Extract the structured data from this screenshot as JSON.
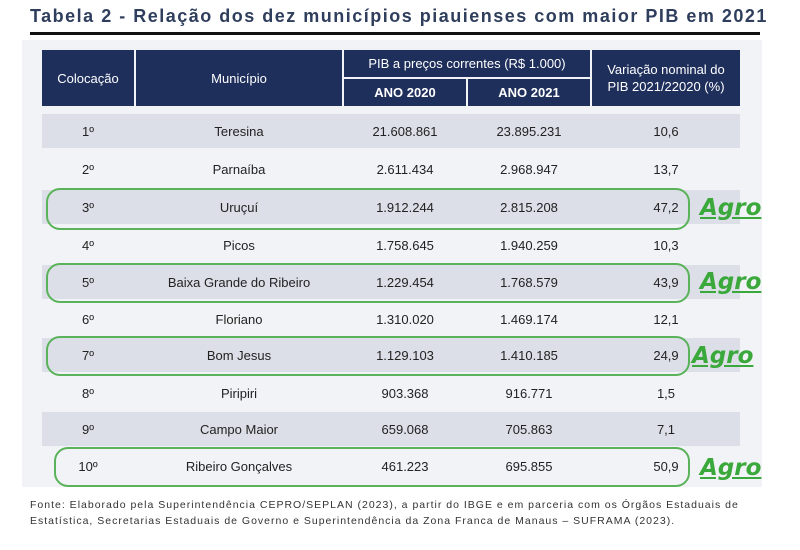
{
  "title": "Tabela 2 - Relação dos dez municípios piauienses com maior PIB em 2021",
  "header": {
    "colocacao": "Colocação",
    "municipio": "Município",
    "pib": "PIB a preços correntes (R$ 1.000)",
    "ano2020": "ANO 2020",
    "ano2021": "ANO  2021",
    "variacao_line1": "Variação nominal do",
    "variacao_line2": "PIB 2021/22020 (%)"
  },
  "rows": [
    {
      "pos": "1º",
      "municipio": "Teresina",
      "pib2020": "21.608.861",
      "pib2021": "23.895.231",
      "var": "10,6"
    },
    {
      "pos": "2º",
      "municipio": "Parnaíba",
      "pib2020": "2.611.434",
      "pib2021": "2.968.947",
      "var": "13,7"
    },
    {
      "pos": "3º",
      "municipio": "Uruçuí",
      "pib2020": "1.912.244",
      "pib2021": "2.815.208",
      "var": "47,2"
    },
    {
      "pos": "4º",
      "municipio": "Picos",
      "pib2020": "1.758.645",
      "pib2021": "1.940.259",
      "var": "10,3"
    },
    {
      "pos": "5º",
      "municipio": "Baixa Grande do Ribeiro",
      "pib2020": "1.229.454",
      "pib2021": "1.768.579",
      "var": "43,9"
    },
    {
      "pos": "6º",
      "municipio": "Floriano",
      "pib2020": "1.310.020",
      "pib2021": "1.469.174",
      "var": "12,1"
    },
    {
      "pos": "7º",
      "municipio": "Bom Jesus",
      "pib2020": "1.129.103",
      "pib2021": "1.410.185",
      "var": "24,9"
    },
    {
      "pos": "8º",
      "municipio": "Piripiri",
      "pib2020": "903.368",
      "pib2021": "916.771",
      "var": "1,5"
    },
    {
      "pos": "9º",
      "municipio": "Campo Maior",
      "pib2020": "659.068",
      "pib2021": "705.863",
      "var": "7,1"
    },
    {
      "pos": "10º",
      "municipio": "Ribeiro Gonçalves",
      "pib2020": "461.223",
      "pib2021": "695.855",
      "var": "50,9"
    }
  ],
  "annotations": {
    "agro1": "Agro",
    "agro2": "Agro",
    "agro3": "Agro",
    "agro4": "Agro"
  },
  "highlight_color": "#5ab35a",
  "agro_color": "#3aa83a",
  "header_color": "#1f2f5c",
  "source_line1": "Fonte: Elaborado pela Superintendência CEPRO/SEPLAN (2023), a partir do IBGE e em parceria com os Órgãos Estaduais de",
  "source_line2": "Estatística, Secretarias Estaduais de Governo e Superintendência da Zona Franca de Manaus – SUFRAMA (2023)."
}
